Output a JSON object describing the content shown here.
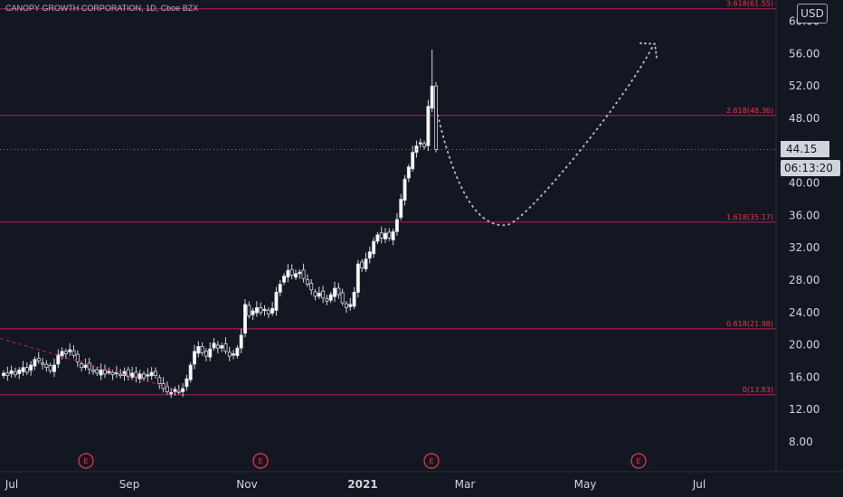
{
  "header": {
    "title": "CANOPY GROWTH CORPORATION, 1D, Cboe BZX",
    "currency": "USD"
  },
  "chart_data": {
    "type": "candlestick",
    "title": "CANOPY GROWTH CORPORATION, 1D, Cboe BZX",
    "y_ticks": [
      "60.00",
      "56.00",
      "52.00",
      "48.00",
      "44.00",
      "40.00",
      "36.00",
      "32.00",
      "28.00",
      "24.00",
      "20.00",
      "16.00",
      "12.00",
      "8.00"
    ],
    "ylim": [
      4.4,
      64.4
    ],
    "x_ticks": [
      "Jul",
      "Sep",
      "Nov",
      "2021",
      "Mar",
      "May",
      "Jul"
    ],
    "last_price": "44.15",
    "countdown": "06:13:20",
    "fib_levels": [
      {
        "label": "3.618(61.55)",
        "value": 61.55
      },
      {
        "label": "2.618(48.36)",
        "value": 48.36
      },
      {
        "label": "1.618(35.17)",
        "value": 35.17
      },
      {
        "label": "0.618(21.98)",
        "value": 21.98
      },
      {
        "label": "0(13.83)",
        "value": 13.83
      }
    ],
    "earnings_markers": [
      "E",
      "E",
      "E",
      "E"
    ],
    "price_series": [
      16.5,
      16.2,
      16.8,
      16.3,
      16.9,
      17.2,
      16.6,
      17.5,
      18.2,
      18.0,
      17.6,
      17.2,
      16.8,
      17.5,
      18.8,
      19.2,
      18.9,
      19.4,
      18.7,
      17.9,
      17.2,
      17.5,
      17.0,
      16.8,
      16.5,
      16.9,
      16.4,
      16.7,
      16.3,
      16.6,
      16.2,
      16.7,
      16.1,
      16.5,
      16.0,
      16.4,
      15.9,
      16.3,
      16.6,
      16.2,
      15.2,
      14.6,
      14.2,
      14.1,
      14.5,
      14.2,
      14.6,
      15.8,
      17.5,
      19.2,
      19.8,
      19.0,
      18.6,
      19.5,
      20.2,
      19.6,
      19.9,
      19.2,
      18.6,
      18.9,
      19.6,
      21.2,
      25.0,
      23.6,
      24.2,
      24.6,
      24.0,
      24.4,
      23.8,
      24.5,
      26.5,
      27.5,
      28.5,
      29.2,
      28.6,
      28.8,
      29.0,
      28.2,
      27.5,
      26.8,
      26.0,
      26.4,
      25.8,
      25.4,
      26.2,
      27.0,
      26.2,
      25.2,
      24.6,
      25.0,
      26.5,
      30.0,
      29.5,
      30.6,
      31.5,
      32.8,
      33.6,
      33.2,
      33.8,
      33.2,
      34.0,
      35.5,
      38.0,
      40.5,
      42.0,
      43.8,
      44.6,
      45.0,
      44.5,
      49.5,
      52.0,
      44.15
    ],
    "projection": "dotted curve from last close down to a low near 35 then up to about 57"
  }
}
